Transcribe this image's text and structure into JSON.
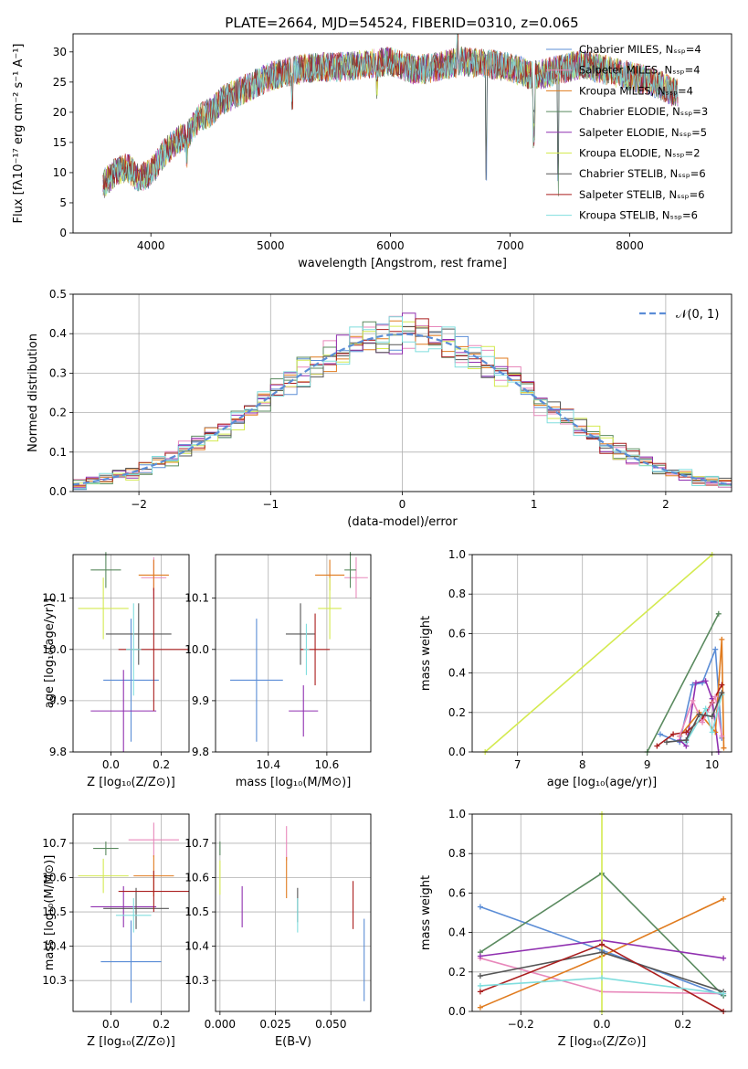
{
  "title": "PLATE=2664, MJD=54524, FIBERID=0310, z=0.065",
  "colors": {
    "chabrier_miles": "#5b8dd6",
    "salpeter_miles": "#e888bb",
    "kroupa_miles": "#e07b1e",
    "chabrier_elodie": "#5a8a5f",
    "salpeter_elodie": "#9030b0",
    "kroupa_elodie": "#d4ea50",
    "chabrier_stelib": "#555555",
    "salpeter_stelib": "#aa1e1e",
    "kroupa_stelib": "#80dede"
  },
  "chart_data": [
    {
      "id": "spectrum",
      "type": "line",
      "title": "PLATE=2664, MJD=54524, FIBERID=0310, z=0.065",
      "xlabel": "wavelength [Angstrom, rest frame]",
      "ylabel": "Flux [fλ10⁻¹⁷ erg cm⁻² s⁻¹ A⁻¹]",
      "xlim": [
        3350,
        8850
      ],
      "ylim": [
        0,
        33
      ],
      "xticks": [
        4000,
        5000,
        6000,
        7000,
        8000
      ],
      "yticks": [
        0,
        5,
        10,
        15,
        20,
        25,
        30
      ],
      "legend_position": "upper-right",
      "legend": [
        "Chabrier MILES, Nₛₛₚ=4",
        "Salpeter MILES, Nₛₛₚ=4",
        "Kroupa MILES, Nₛₛₚ=4",
        "Chabrier ELODIE, Nₛₛₚ=3",
        "Salpeter ELODIE, Nₛₛₚ=5",
        "Kroupa ELODIE, Nₛₛₚ=2",
        "Chabrier STELIB, Nₛₛₚ=6",
        "Salpeter STELIB, Nₛₛₚ=6",
        "Kroupa STELIB, Nₛₛₚ=6"
      ],
      "continuum": {
        "x": [
          3600,
          3700,
          3800,
          3900,
          4000,
          4100,
          4200,
          4300,
          4400,
          4500,
          4600,
          4800,
          5000,
          5200,
          5400,
          5600,
          5800,
          6000,
          6200,
          6400,
          6600,
          6800,
          7000,
          7200,
          7400,
          7600,
          7800,
          8000,
          8200,
          8400
        ],
        "y": [
          8,
          10,
          11,
          9,
          10,
          13,
          15,
          16,
          19,
          20,
          22,
          24,
          26,
          27,
          27.5,
          27.5,
          28,
          28.5,
          27,
          27.5,
          28.5,
          28,
          27.5,
          26,
          27,
          28,
          27,
          26,
          25,
          23
        ]
      },
      "features": [
        {
          "x": 4300,
          "depth": 3
        },
        {
          "x": 5180,
          "depth": 6
        },
        {
          "x": 5890,
          "depth": 4
        },
        {
          "x": 6560,
          "depth": -4
        },
        {
          "x": 6800,
          "depth": 20
        },
        {
          "x": 7200,
          "depth": 12
        },
        {
          "x": 7400,
          "depth": 20
        }
      ]
    },
    {
      "id": "residuals",
      "type": "bar",
      "xlabel": "(data-model)/error",
      "ylabel": "Normed distribution",
      "xlim": [
        -2.5,
        2.5
      ],
      "ylim": [
        0,
        0.5
      ],
      "xticks": [
        -2,
        -1,
        0,
        1,
        2
      ],
      "yticks": [
        0.0,
        0.1,
        0.2,
        0.3,
        0.4,
        0.5
      ],
      "legend": [
        "𝒩(0, 1)"
      ],
      "bin_width": 0.1,
      "bin_start": -2.5,
      "curve": "gaussian"
    },
    {
      "id": "age_vs_z",
      "type": "scatter",
      "xlabel": "Z [log₁₀(Z/Z⊙)]",
      "ylabel": "age  [log₁₀(age/yr)]",
      "xlim": [
        -0.15,
        0.31
      ],
      "ylim": [
        9.8,
        10.185
      ],
      "xticks": [
        0.0,
        0.2
      ],
      "yticks": [
        9.8,
        9.9,
        10.0,
        10.1
      ],
      "points": [
        {
          "series": "chabrier_miles",
          "x": 0.08,
          "y": 9.94,
          "xerr": 0.11,
          "yerr": 0.12
        },
        {
          "series": "salpeter_miles",
          "x": 0.17,
          "y": 10.14,
          "xerr": 0.05,
          "yerr": 0.04
        },
        {
          "series": "kroupa_miles",
          "x": 0.17,
          "y": 10.145,
          "xerr": 0.06,
          "yerr": 0.03
        },
        {
          "series": "chabrier_elodie",
          "x": -0.02,
          "y": 10.155,
          "xerr": 0.06,
          "yerr": 0.035
        },
        {
          "series": "salpeter_elodie",
          "x": 0.05,
          "y": 9.88,
          "xerr": 0.13,
          "yerr": 0.08
        },
        {
          "series": "kroupa_elodie",
          "x": -0.03,
          "y": 10.08,
          "xerr": 0.1,
          "yerr": 0.06
        },
        {
          "series": "chabrier_stelib",
          "x": 0.11,
          "y": 10.03,
          "xerr": 0.13,
          "yerr": 0.06
        },
        {
          "series": "salpeter_stelib",
          "x": 0.17,
          "y": 10.0,
          "xerr": 0.14,
          "yerr": 0.12
        },
        {
          "series": "kroupa_stelib",
          "x": 0.09,
          "y": 10.0,
          "xerr": 0.03,
          "yerr": 0.09
        }
      ]
    },
    {
      "id": "age_vs_mass",
      "type": "scatter",
      "xlabel": "mass [log₁₀(M/M⊙)]",
      "ylabel": "",
      "xlim": [
        10.22,
        10.75
      ],
      "ylim": [
        9.8,
        10.185
      ],
      "xticks": [
        10.4,
        10.6
      ],
      "yticks": [
        9.8,
        9.9,
        10.0,
        10.1
      ],
      "points": [
        {
          "series": "chabrier_miles",
          "x": 10.36,
          "y": 9.94,
          "xerr": 0.09,
          "yerr": 0.12
        },
        {
          "series": "salpeter_miles",
          "x": 10.7,
          "y": 10.14,
          "xerr": 0.04,
          "yerr": 0.04
        },
        {
          "series": "kroupa_miles",
          "x": 10.61,
          "y": 10.145,
          "xerr": 0.05,
          "yerr": 0.03
        },
        {
          "series": "chabrier_elodie",
          "x": 10.68,
          "y": 10.155,
          "xerr": 0.02,
          "yerr": 0.035
        },
        {
          "series": "salpeter_elodie",
          "x": 10.52,
          "y": 9.88,
          "xerr": 0.05,
          "yerr": 0.05
        },
        {
          "series": "kroupa_elodie",
          "x": 10.61,
          "y": 10.08,
          "xerr": 0.04,
          "yerr": 0.06
        },
        {
          "series": "chabrier_stelib",
          "x": 10.51,
          "y": 10.03,
          "xerr": 0.05,
          "yerr": 0.06
        },
        {
          "series": "salpeter_stelib",
          "x": 10.56,
          "y": 10.0,
          "xerr": 0.05,
          "yerr": 0.07
        },
        {
          "series": "kroupa_stelib",
          "x": 10.53,
          "y": 10.0,
          "xerr": 0.01,
          "yerr": 0.05
        }
      ]
    },
    {
      "id": "mass_weight_vs_age",
      "type": "line",
      "xlabel": "age  [log₁₀(age/yr)]",
      "ylabel": "mass weight",
      "xlim": [
        6.3,
        10.3
      ],
      "ylim": [
        0,
        1.0
      ],
      "xticks": [
        7,
        8,
        9,
        10
      ],
      "yticks": [
        0.0,
        0.2,
        0.4,
        0.6,
        0.8,
        1.0
      ],
      "series": [
        {
          "series": "kroupa_elodie",
          "x": [
            6.5,
            10.0
          ],
          "y": [
            0.0,
            1.0
          ]
        },
        {
          "series": "chabrier_elodie",
          "x": [
            9.0,
            10.1
          ],
          "y": [
            0.0,
            0.7
          ]
        },
        {
          "series": "chabrier_miles",
          "x": [
            9.2,
            9.5,
            9.7,
            9.85,
            10.05,
            10.15
          ],
          "y": [
            0.09,
            0.05,
            0.34,
            0.35,
            0.52,
            0.07
          ]
        },
        {
          "series": "salpeter_elodie",
          "x": [
            9.5,
            9.6,
            9.75,
            9.9,
            10.0,
            10.1
          ],
          "y": [
            0.06,
            0.03,
            0.35,
            0.36,
            0.27,
            0.0
          ]
        },
        {
          "series": "kroupa_miles",
          "x": [
            9.5,
            9.8,
            10.05,
            10.15,
            10.18
          ],
          "y": [
            0.08,
            0.2,
            0.1,
            0.57,
            0.02
          ]
        },
        {
          "series": "salpeter_stelib",
          "x": [
            9.15,
            9.4,
            9.6,
            9.85,
            10.0,
            10.15
          ],
          "y": [
            0.03,
            0.09,
            0.1,
            0.17,
            0.25,
            0.34
          ]
        },
        {
          "series": "salpeter_miles",
          "x": [
            9.5,
            9.7,
            9.85,
            10.05,
            10.15
          ],
          "y": [
            0.08,
            0.26,
            0.15,
            0.28,
            0.08
          ]
        },
        {
          "series": "kroupa_stelib",
          "x": [
            9.6,
            9.9,
            10.0,
            10.15
          ],
          "y": [
            0.05,
            0.22,
            0.1,
            0.29
          ]
        },
        {
          "series": "chabrier_stelib",
          "x": [
            9.3,
            9.6,
            9.8,
            10.0,
            10.15
          ],
          "y": [
            0.05,
            0.06,
            0.19,
            0.18,
            0.3
          ]
        }
      ]
    },
    {
      "id": "mass_vs_z",
      "type": "scatter",
      "xlabel": "Z [log₁₀(Z/Z⊙)]",
      "ylabel": "mass [log₁₀(M/M⊙)]",
      "xlim": [
        -0.15,
        0.31
      ],
      "ylim": [
        10.21,
        10.785
      ],
      "xticks": [
        0.0,
        0.2
      ],
      "yticks": [
        10.3,
        10.4,
        10.5,
        10.6,
        10.7
      ],
      "points": [
        {
          "series": "chabrier_miles",
          "x": 0.08,
          "y": 10.355,
          "xerr": 0.12,
          "yerr": 0.12
        },
        {
          "series": "salpeter_miles",
          "x": 0.17,
          "y": 10.71,
          "xerr": 0.1,
          "yerr": 0.05
        },
        {
          "series": "kroupa_miles",
          "x": 0.17,
          "y": 10.605,
          "xerr": 0.08,
          "yerr": 0.06
        },
        {
          "series": "chabrier_elodie",
          "x": -0.02,
          "y": 10.685,
          "xerr": 0.05,
          "yerr": 0.02
        },
        {
          "series": "salpeter_elodie",
          "x": 0.05,
          "y": 10.515,
          "xerr": 0.13,
          "yerr": 0.06
        },
        {
          "series": "kroupa_elodie",
          "x": -0.03,
          "y": 10.605,
          "xerr": 0.1,
          "yerr": 0.05
        },
        {
          "series": "chabrier_stelib",
          "x": 0.1,
          "y": 10.51,
          "xerr": 0.13,
          "yerr": 0.06
        },
        {
          "series": "salpeter_stelib",
          "x": 0.17,
          "y": 10.56,
          "xerr": 0.14,
          "yerr": 0.06
        },
        {
          "series": "kroupa_stelib",
          "x": 0.09,
          "y": 10.49,
          "xerr": 0.07,
          "yerr": 0.05
        }
      ]
    },
    {
      "id": "mass_vs_ebv",
      "type": "scatter",
      "xlabel": "E(B-V)",
      "ylabel": "",
      "xlim": [
        -0.002,
        0.068
      ],
      "ylim": [
        10.21,
        10.785
      ],
      "xticks": [
        0.0,
        0.025,
        0.05
      ],
      "xtick_labels": [
        "0.000",
        "0.025",
        "0.050"
      ],
      "yticks": [
        10.3,
        10.4,
        10.5,
        10.6,
        10.7
      ],
      "points": [
        {
          "series": "chabrier_miles",
          "x": 0.065,
          "y": 10.36,
          "xerr": 0,
          "yerr": 0.12
        },
        {
          "series": "salpeter_miles",
          "x": 0.03,
          "y": 10.7,
          "xerr": 0,
          "yerr": 0.05
        },
        {
          "series": "kroupa_miles",
          "x": 0.03,
          "y": 10.6,
          "xerr": 0,
          "yerr": 0.06
        },
        {
          "series": "chabrier_elodie",
          "x": 0.0,
          "y": 10.685,
          "xerr": 0,
          "yerr": 0.02
        },
        {
          "series": "salpeter_elodie",
          "x": 0.01,
          "y": 10.515,
          "xerr": 0,
          "yerr": 0.06
        },
        {
          "series": "kroupa_elodie",
          "x": 0.0,
          "y": 10.6,
          "xerr": 0,
          "yerr": 0.05
        },
        {
          "series": "chabrier_stelib",
          "x": 0.035,
          "y": 10.52,
          "xerr": 0,
          "yerr": 0.05
        },
        {
          "series": "salpeter_stelib",
          "x": 0.06,
          "y": 10.52,
          "xerr": 0,
          "yerr": 0.07
        },
        {
          "series": "kroupa_stelib",
          "x": 0.035,
          "y": 10.49,
          "xerr": 0,
          "yerr": 0.05
        }
      ]
    },
    {
      "id": "mass_weight_vs_z",
      "type": "line",
      "xlabel": "Z [log₁₀(Z/Z⊙)]",
      "ylabel": "mass weight",
      "xlim": [
        -0.32,
        0.32
      ],
      "ylim": [
        0,
        1.0
      ],
      "xticks": [
        -0.2,
        0.0,
        0.2
      ],
      "yticks": [
        0.0,
        0.2,
        0.4,
        0.6,
        0.8,
        1.0
      ],
      "series": [
        {
          "series": "chabrier_miles",
          "x": [
            -0.3,
            0.0,
            0.3
          ],
          "y": [
            0.53,
            0.31,
            0.08
          ]
        },
        {
          "series": "salpeter_miles",
          "x": [
            -0.3,
            0.0,
            0.3
          ],
          "y": [
            0.27,
            0.1,
            0.09
          ]
        },
        {
          "series": "kroupa_miles",
          "x": [
            -0.3,
            0.0,
            0.3
          ],
          "y": [
            0.02,
            0.28,
            0.57
          ]
        },
        {
          "series": "chabrier_elodie",
          "x": [
            -0.3,
            0.0,
            0.3
          ],
          "y": [
            0.3,
            0.7,
            0.08
          ]
        },
        {
          "series": "salpeter_elodie",
          "x": [
            -0.3,
            0.0,
            0.3
          ],
          "y": [
            0.28,
            0.36,
            0.27
          ]
        },
        {
          "series": "kroupa_elodie",
          "x": [
            0.0,
            0.0
          ],
          "y": [
            0.0,
            1.0
          ]
        },
        {
          "series": "chabrier_stelib",
          "x": [
            -0.3,
            0.0,
            0.3
          ],
          "y": [
            0.18,
            0.3,
            0.1
          ]
        },
        {
          "series": "salpeter_stelib",
          "x": [
            -0.3,
            0.0,
            0.3
          ],
          "y": [
            0.1,
            0.34,
            0.0
          ]
        },
        {
          "series": "kroupa_stelib",
          "x": [
            -0.3,
            0.0,
            0.3
          ],
          "y": [
            0.13,
            0.17,
            0.09
          ]
        }
      ]
    }
  ]
}
